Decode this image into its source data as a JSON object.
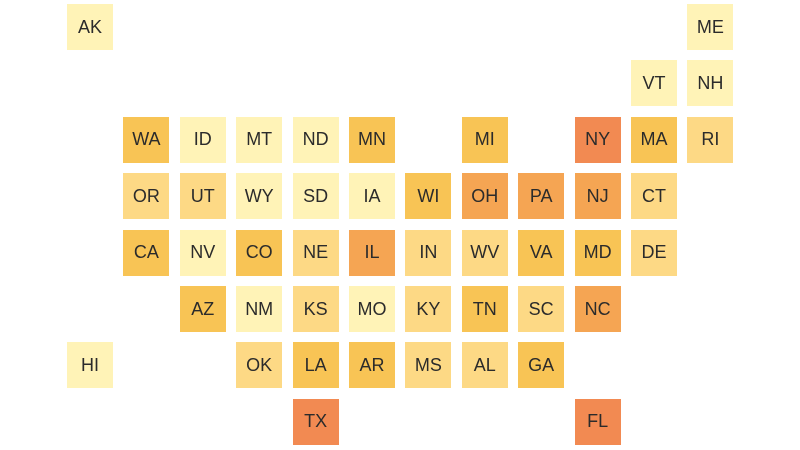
{
  "color_scale": {
    "1": "#fff3b7",
    "2": "#fdd985",
    "3": "#f8c455",
    "4": "#f5a553",
    "5": "#f28a52"
  },
  "states": [
    {
      "abbr": "AK",
      "level": 1
    },
    {
      "abbr": "ME",
      "level": 1
    },
    {
      "abbr": "VT",
      "level": 1
    },
    {
      "abbr": "NH",
      "level": 1
    },
    {
      "abbr": "WA",
      "level": 3
    },
    {
      "abbr": "ID",
      "level": 1
    },
    {
      "abbr": "MT",
      "level": 1
    },
    {
      "abbr": "ND",
      "level": 1
    },
    {
      "abbr": "MN",
      "level": 3
    },
    {
      "abbr": "MI",
      "level": 3
    },
    {
      "abbr": "NY",
      "level": 5
    },
    {
      "abbr": "MA",
      "level": 3
    },
    {
      "abbr": "RI",
      "level": 2
    },
    {
      "abbr": "OR",
      "level": 2
    },
    {
      "abbr": "UT",
      "level": 2
    },
    {
      "abbr": "WY",
      "level": 1
    },
    {
      "abbr": "SD",
      "level": 1
    },
    {
      "abbr": "IA",
      "level": 1
    },
    {
      "abbr": "WI",
      "level": 3
    },
    {
      "abbr": "OH",
      "level": 4
    },
    {
      "abbr": "PA",
      "level": 4
    },
    {
      "abbr": "NJ",
      "level": 4
    },
    {
      "abbr": "CT",
      "level": 2
    },
    {
      "abbr": "CA",
      "level": 3
    },
    {
      "abbr": "NV",
      "level": 1
    },
    {
      "abbr": "CO",
      "level": 3
    },
    {
      "abbr": "NE",
      "level": 2
    },
    {
      "abbr": "IL",
      "level": 4
    },
    {
      "abbr": "IN",
      "level": 2
    },
    {
      "abbr": "WV",
      "level": 2
    },
    {
      "abbr": "VA",
      "level": 3
    },
    {
      "abbr": "MD",
      "level": 3
    },
    {
      "abbr": "DE",
      "level": 2
    },
    {
      "abbr": "AZ",
      "level": 3
    },
    {
      "abbr": "NM",
      "level": 1
    },
    {
      "abbr": "KS",
      "level": 2
    },
    {
      "abbr": "MO",
      "level": 1
    },
    {
      "abbr": "KY",
      "level": 2
    },
    {
      "abbr": "TN",
      "level": 3
    },
    {
      "abbr": "SC",
      "level": 2
    },
    {
      "abbr": "NC",
      "level": 4
    },
    {
      "abbr": "HI",
      "level": 1
    },
    {
      "abbr": "OK",
      "level": 2
    },
    {
      "abbr": "LA",
      "level": 3
    },
    {
      "abbr": "AR",
      "level": 3
    },
    {
      "abbr": "MS",
      "level": 2
    },
    {
      "abbr": "AL",
      "level": 2
    },
    {
      "abbr": "GA",
      "level": 3
    },
    {
      "abbr": "TX",
      "level": 5
    },
    {
      "abbr": "FL",
      "level": 5
    }
  ]
}
